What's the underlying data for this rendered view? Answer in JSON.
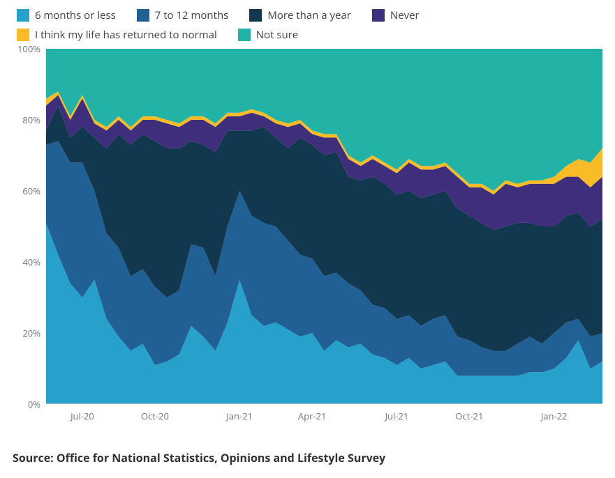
{
  "chart": {
    "type": "stacked-area",
    "background_color": "#ffffff",
    "text_color": "#414042",
    "axis_label_color": "#6f777b",
    "axis_line_color": "#bfc1c3",
    "ylim": [
      0,
      100
    ],
    "ytick_step": 20,
    "ytick_labels": [
      "0%",
      "20%",
      "40%",
      "60%",
      "80%",
      "100%"
    ],
    "x_tick_indices": [
      3,
      9,
      16,
      22,
      29,
      35,
      42
    ],
    "x_tick_labels": [
      "Jul-20",
      "Oct-20",
      "Jan-21",
      "Apr-21",
      "Jul-21",
      "Oct-21",
      "Jan-22"
    ],
    "legend_fontsize": 15,
    "axis_fontsize": 13,
    "series": [
      {
        "name": "6 months or less",
        "color": "#27a0cc",
        "values": [
          51,
          42,
          34,
          30,
          35,
          24,
          19,
          15,
          17,
          11,
          12,
          14,
          22,
          19,
          15,
          23,
          35,
          25,
          22,
          23,
          21,
          19,
          20,
          15,
          18,
          16,
          17,
          14,
          13,
          11,
          13,
          10,
          11,
          12,
          8,
          8,
          8,
          8,
          8,
          8,
          9,
          9,
          10,
          13,
          18,
          10,
          12
        ]
      },
      {
        "name": "7 to 12 months",
        "color": "#206095",
        "values": [
          22,
          32,
          34,
          38,
          25,
          24,
          25,
          21,
          21,
          22,
          18,
          18,
          23,
          25,
          21,
          27,
          25,
          28,
          29,
          27,
          25,
          23,
          21,
          21,
          19,
          18,
          15,
          14,
          14,
          13,
          12,
          12,
          13,
          13,
          11,
          10,
          8,
          7,
          7,
          9,
          10,
          8,
          10,
          10,
          6,
          9,
          8
        ]
      },
      {
        "name": "More than a year",
        "color": "#123850",
        "values": [
          4,
          10,
          7,
          10,
          15,
          24,
          32,
          37,
          38,
          41,
          42,
          40,
          29,
          29,
          35,
          27,
          17,
          24,
          27,
          25,
          26,
          33,
          32,
          34,
          34,
          30,
          31,
          36,
          35,
          35,
          35,
          36,
          35,
          35,
          36,
          35,
          35,
          34,
          35,
          34,
          32,
          33,
          30,
          30,
          30,
          31,
          32
        ]
      },
      {
        "name": "Never",
        "color": "#3f2e7b",
        "values": [
          7,
          3,
          5,
          8,
          4,
          5,
          4,
          4,
          4,
          6,
          7,
          6,
          6,
          7,
          7,
          4,
          4,
          5,
          3,
          4,
          6,
          4,
          3,
          5,
          4,
          5,
          4,
          5,
          5,
          6,
          8,
          8,
          7,
          7,
          9,
          8,
          10,
          10,
          12,
          10,
          11,
          12,
          12,
          11,
          10,
          11,
          12
        ]
      },
      {
        "name": "I think my life has returned to normal",
        "color": "#f9bc26",
        "values": [
          2,
          1,
          1,
          1,
          1,
          1,
          1,
          1,
          1,
          1,
          1,
          1,
          1,
          1,
          1,
          1,
          1,
          1,
          1,
          1,
          1,
          1,
          1,
          1,
          1,
          1,
          1,
          1,
          1,
          1,
          1,
          1,
          1,
          1,
          1,
          1,
          1,
          1,
          1,
          1,
          1,
          1,
          2,
          3,
          5,
          7,
          8
        ]
      },
      {
        "name": "Not sure",
        "color": "#22b3a6",
        "values": [
          14,
          12,
          19,
          13,
          20,
          22,
          19,
          22,
          19,
          19,
          20,
          21,
          19,
          19,
          21,
          18,
          18,
          17,
          18,
          20,
          21,
          20,
          23,
          24,
          24,
          30,
          32,
          30,
          32,
          34,
          31,
          33,
          33,
          32,
          35,
          38,
          38,
          40,
          37,
          38,
          37,
          37,
          36,
          33,
          31,
          32,
          28
        ]
      }
    ]
  },
  "source_label": "Source: Office for National Statistics, Opinions and Lifestyle Survey"
}
